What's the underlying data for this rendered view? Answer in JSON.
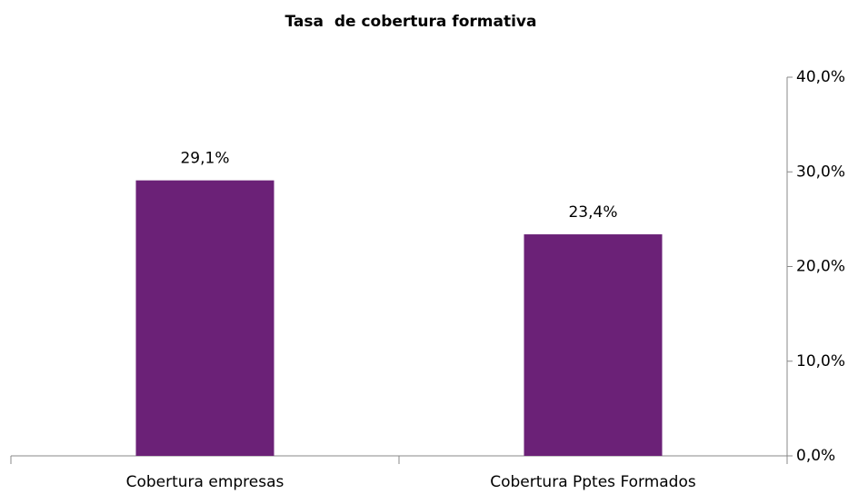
{
  "chart_data": {
    "type": "bar",
    "title": "Tasa  de cobertura formativa",
    "categories": [
      "Cobertura empresas",
      "Cobertura Pptes Formados"
    ],
    "values": [
      29.1,
      23.4
    ],
    "value_labels": [
      "29,1%",
      "23,4%"
    ],
    "color": "#6b2177",
    "ylim": [
      0,
      40
    ],
    "yticks": [
      {
        "value": 0,
        "label": "0,0%"
      },
      {
        "value": 10,
        "label": "10,0%"
      },
      {
        "value": 20,
        "label": "20,0%"
      },
      {
        "value": 30,
        "label": "30,0%"
      },
      {
        "value": 40,
        "label": "40,0%"
      }
    ],
    "grid": false
  }
}
